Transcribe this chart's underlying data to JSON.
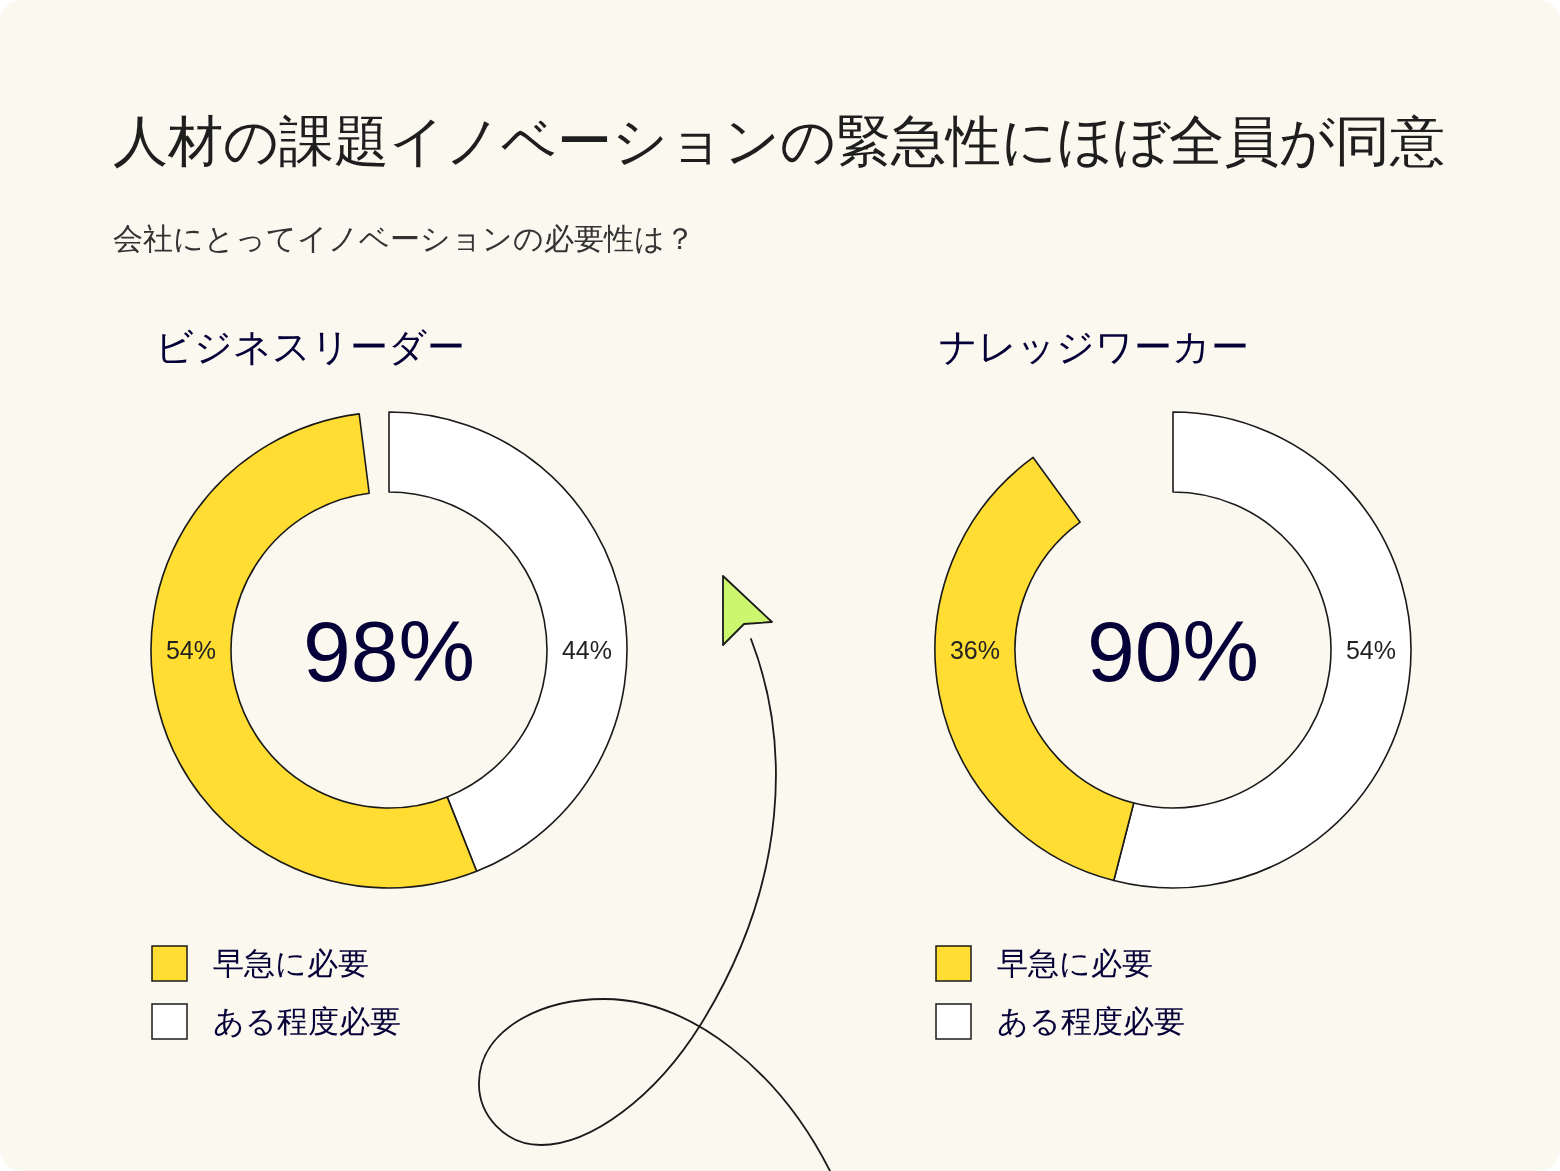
{
  "chart_data": [
    {
      "type": "other",
      "title": "人材の課題イノベーションの緊急性にほぼ全員が同意",
      "subtitle": "会社にとってイノベーションの必要性は？"
    },
    {
      "type": "donut",
      "title": "ビジネスリーダー",
      "categories": [
        "早急に必要",
        "ある程度必要"
      ],
      "values": [
        54,
        44
      ],
      "colors": [
        "#ffdd33",
        "#ffffff"
      ],
      "value_labels": [
        "54%",
        "44%"
      ],
      "annotations": [
        "98%"
      ],
      "legend": "bottom"
    },
    {
      "type": "donut",
      "title": "ナレッジワーカー",
      "categories": [
        "早急に必要",
        "ある程度必要"
      ],
      "values": [
        36,
        54
      ],
      "colors": [
        "#ffdd33",
        "#ffffff"
      ],
      "value_labels": [
        "36%",
        "54%"
      ],
      "annotations": [
        "90%"
      ],
      "legend": "bottom"
    }
  ]
}
